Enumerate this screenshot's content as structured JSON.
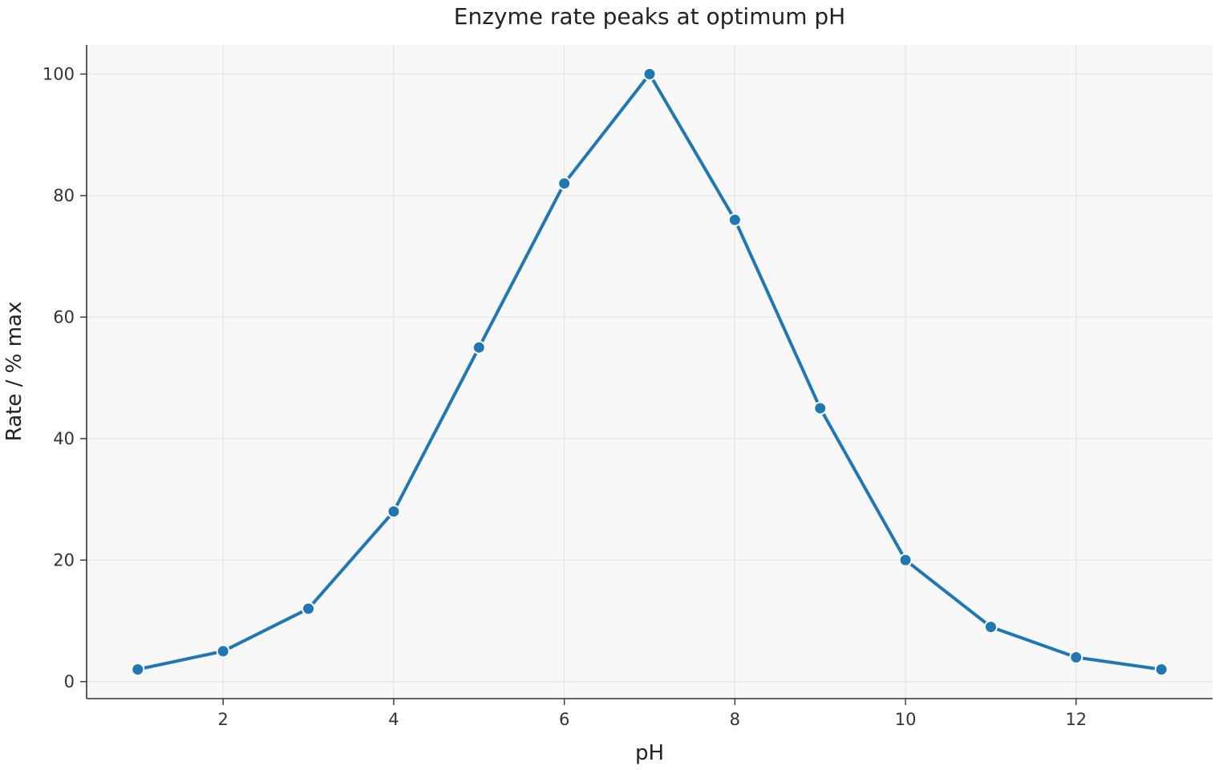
{
  "chart_data": {
    "type": "line",
    "title": "Enzyme rate peaks at optimum pH",
    "xlabel": "pH",
    "ylabel": "Rate / % max",
    "x": [
      1,
      2,
      3,
      4,
      5,
      6,
      7,
      8,
      9,
      10,
      11,
      12,
      13
    ],
    "series": [
      {
        "values": [
          2,
          5,
          12,
          28,
          55,
          82,
          100,
          76,
          45,
          20,
          9,
          4,
          2
        ]
      }
    ],
    "xlim": [
      0.4,
      13.6
    ],
    "ylim": [
      -2.8,
      104.8
    ],
    "xticks": [
      "2",
      "4",
      "6",
      "8",
      "10",
      "12"
    ],
    "yticks": [
      "0",
      "20",
      "40",
      "60",
      "80",
      "100"
    ],
    "grid": true,
    "legend": "none",
    "colors": {
      "line": "#1f77b4",
      "marker_edge": "#ffffff",
      "plot_background": "#f8f8f8"
    }
  }
}
